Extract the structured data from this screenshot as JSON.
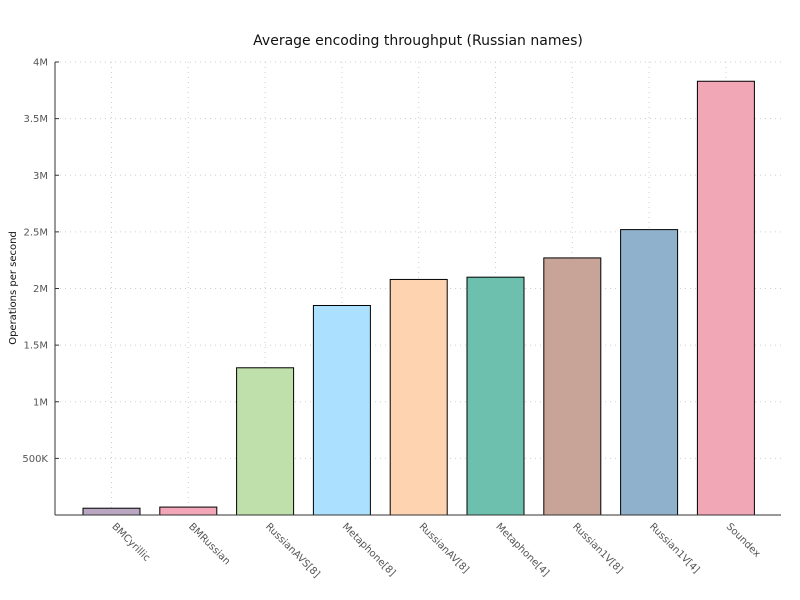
{
  "chart_data": {
    "type": "bar",
    "title": "Average encoding throughput (Russian names)",
    "xlabel": "",
    "ylabel": "Operations per second",
    "categories": [
      "BMCyrillic",
      "BMRussian",
      "RussianAVS[8]",
      "Metaphone[8]",
      "RussianAV[8]",
      "Metaphone[4]",
      "Russian1V[8]",
      "Russian1V[4]",
      "Soundex"
    ],
    "values": [
      60000,
      70000,
      1300000,
      1850000,
      2080000,
      2100000,
      2270000,
      2520000,
      3830000
    ],
    "colors": [
      "#b9a6c1",
      "#f2a6b7",
      "#bfdfab",
      "#abe0fe",
      "#fed3b0",
      "#6cc0ad",
      "#c8a398",
      "#8fb1cc",
      "#f2a7b7"
    ],
    "ylim": [
      0,
      4000000
    ],
    "yticks": [
      500000,
      1000000,
      1500000,
      2000000,
      2500000,
      3000000,
      3500000,
      4000000
    ],
    "ytick_labels": [
      "500K",
      "1M",
      "1.5M",
      "2M",
      "2.5M",
      "3M",
      "3.5M",
      "4M"
    ],
    "grid": true,
    "legend": "none"
  }
}
